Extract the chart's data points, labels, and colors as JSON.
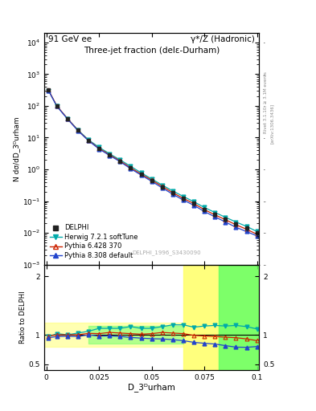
{
  "title_top_left": "91 GeV ee",
  "title_top_right": "γ*/Z (Hadronic)",
  "plot_title": "Three-jet fraction (delε-Durham)",
  "xlabel": "D_3ᴰurham",
  "ylabel_main": "N dσ/dD_3ᴰurham",
  "ylabel_ratio": "Ratio to DELPHI",
  "watermark": "DELPHI_1996_S3430090",
  "right_label": "Rivet 3.1.10; ≥ 3.1M events",
  "arxiv_label": "[arXiv:1306.3436]",
  "x_data": [
    0.001,
    0.005,
    0.01,
    0.015,
    0.02,
    0.025,
    0.03,
    0.035,
    0.04,
    0.045,
    0.05,
    0.055,
    0.06,
    0.065,
    0.07,
    0.075,
    0.08,
    0.085,
    0.09,
    0.095,
    0.1
  ],
  "delphi_y": [
    320,
    100,
    40,
    17,
    8,
    4.5,
    2.8,
    1.8,
    1.1,
    0.7,
    0.45,
    0.28,
    0.18,
    0.12,
    0.085,
    0.055,
    0.038,
    0.027,
    0.019,
    0.014,
    0.01
  ],
  "delphi_yerr": [
    15,
    5,
    2,
    1,
    0.5,
    0.3,
    0.2,
    0.15,
    0.1,
    0.08,
    0.05,
    0.04,
    0.03,
    0.02,
    0.015,
    0.01,
    0.008,
    0.006,
    0.004,
    0.003,
    0.002
  ],
  "herwig_y": [
    310,
    98,
    40,
    17.5,
    8.5,
    5.0,
    3.1,
    2.0,
    1.25,
    0.78,
    0.5,
    0.32,
    0.21,
    0.14,
    0.096,
    0.063,
    0.044,
    0.031,
    0.022,
    0.016,
    0.011
  ],
  "pythia6_y": [
    315,
    100,
    40,
    17,
    8.2,
    4.6,
    2.9,
    1.85,
    1.12,
    0.71,
    0.46,
    0.29,
    0.185,
    0.122,
    0.084,
    0.054,
    0.037,
    0.026,
    0.018,
    0.013,
    0.009
  ],
  "pythia8_y": [
    305,
    97,
    39,
    16.5,
    8.0,
    4.4,
    2.75,
    1.75,
    1.05,
    0.66,
    0.42,
    0.26,
    0.165,
    0.108,
    0.074,
    0.047,
    0.032,
    0.022,
    0.015,
    0.011,
    0.008
  ],
  "ratio_herwig": [
    0.97,
    1.02,
    1.0,
    1.03,
    1.06,
    1.11,
    1.11,
    1.11,
    1.14,
    1.11,
    1.11,
    1.14,
    1.17,
    1.17,
    1.13,
    1.15,
    1.16,
    1.15,
    1.16,
    1.14,
    1.1
  ],
  "ratio_pythia6": [
    0.98,
    1.0,
    1.0,
    1.0,
    1.025,
    1.02,
    1.04,
    1.03,
    1.02,
    1.01,
    1.02,
    1.04,
    1.03,
    1.02,
    0.99,
    0.98,
    0.97,
    0.96,
    0.95,
    0.93,
    0.9
  ],
  "ratio_pythia8": [
    0.95,
    0.97,
    0.975,
    0.97,
    1.0,
    0.978,
    0.982,
    0.972,
    0.955,
    0.943,
    0.933,
    0.929,
    0.917,
    0.9,
    0.871,
    0.855,
    0.842,
    0.815,
    0.789,
    0.786,
    0.8
  ],
  "color_delphi": "#222222",
  "color_herwig": "#00aaaa",
  "color_pythia6": "#cc2200",
  "color_pythia8": "#2244cc",
  "color_yellow": "#ffff66",
  "color_green": "#66ff66",
  "main_ylim_lo": 0.001,
  "main_ylim_hi": 20000.0,
  "ratio_ylim_lo": 0.4,
  "ratio_ylim_hi": 2.2,
  "xlim_lo": -0.001,
  "xlim_hi": 0.101
}
